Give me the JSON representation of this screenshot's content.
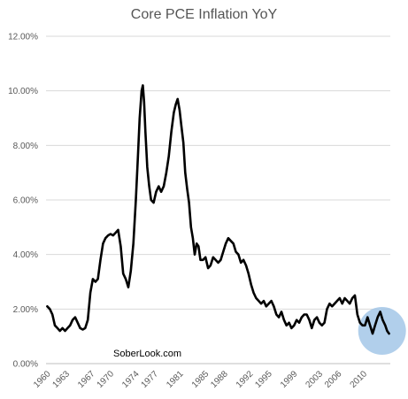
{
  "chart_data": {
    "type": "line",
    "title": "Core PCE Inflation YoY",
    "xlabel": "",
    "ylabel": "",
    "xlim": [
      1959.8,
      2014.2
    ],
    "ylim": [
      0,
      12
    ],
    "y_ticks": [
      "0.00%",
      "2.00%",
      "4.00%",
      "6.00%",
      "8.00%",
      "10.00%",
      "12.00%"
    ],
    "x_ticks": [
      "1960",
      "1963",
      "1967",
      "1970",
      "1974",
      "1977",
      "1981",
      "1985",
      "1988",
      "1992",
      "1995",
      "1999",
      "2003",
      "2006",
      "2010"
    ],
    "grid": "horizontal",
    "legend": "none",
    "annotation": "SoberLook.com",
    "highlight": {
      "x": 2012.9,
      "y": 1.2,
      "color": "#9DC3E6"
    },
    "series": [
      {
        "color": "#000000",
        "points": [
          [
            1960.0,
            2.1
          ],
          [
            1960.4,
            2.0
          ],
          [
            1960.8,
            1.8
          ],
          [
            1961.2,
            1.4
          ],
          [
            1961.6,
            1.3
          ],
          [
            1962.0,
            1.2
          ],
          [
            1962.4,
            1.3
          ],
          [
            1962.8,
            1.2
          ],
          [
            1963.2,
            1.3
          ],
          [
            1963.6,
            1.4
          ],
          [
            1964.0,
            1.6
          ],
          [
            1964.4,
            1.7
          ],
          [
            1964.8,
            1.5
          ],
          [
            1965.2,
            1.3
          ],
          [
            1965.6,
            1.25
          ],
          [
            1966.0,
            1.3
          ],
          [
            1966.4,
            1.6
          ],
          [
            1966.8,
            2.6
          ],
          [
            1967.2,
            3.1
          ],
          [
            1967.6,
            3.0
          ],
          [
            1968.0,
            3.1
          ],
          [
            1968.4,
            3.8
          ],
          [
            1968.8,
            4.4
          ],
          [
            1969.2,
            4.6
          ],
          [
            1969.6,
            4.7
          ],
          [
            1970.0,
            4.75
          ],
          [
            1970.4,
            4.7
          ],
          [
            1970.8,
            4.8
          ],
          [
            1971.2,
            4.9
          ],
          [
            1971.6,
            4.3
          ],
          [
            1972.0,
            3.3
          ],
          [
            1972.4,
            3.1
          ],
          [
            1972.8,
            2.8
          ],
          [
            1973.2,
            3.4
          ],
          [
            1973.6,
            4.4
          ],
          [
            1974.0,
            6.0
          ],
          [
            1974.3,
            7.5
          ],
          [
            1974.6,
            9.0
          ],
          [
            1974.9,
            10.0
          ],
          [
            1975.1,
            10.2
          ],
          [
            1975.3,
            9.6
          ],
          [
            1975.5,
            8.5
          ],
          [
            1975.8,
            7.2
          ],
          [
            1976.1,
            6.5
          ],
          [
            1976.4,
            6.0
          ],
          [
            1976.8,
            5.9
          ],
          [
            1977.2,
            6.3
          ],
          [
            1977.6,
            6.5
          ],
          [
            1978.0,
            6.3
          ],
          [
            1978.4,
            6.5
          ],
          [
            1978.8,
            7.0
          ],
          [
            1979.2,
            7.6
          ],
          [
            1979.6,
            8.5
          ],
          [
            1980.0,
            9.2
          ],
          [
            1980.3,
            9.5
          ],
          [
            1980.6,
            9.7
          ],
          [
            1980.9,
            9.3
          ],
          [
            1981.2,
            8.7
          ],
          [
            1981.5,
            8.1
          ],
          [
            1981.8,
            7.0
          ],
          [
            1982.1,
            6.4
          ],
          [
            1982.4,
            5.9
          ],
          [
            1982.7,
            5.0
          ],
          [
            1983.0,
            4.6
          ],
          [
            1983.3,
            4.0
          ],
          [
            1983.6,
            4.4
          ],
          [
            1983.9,
            4.3
          ],
          [
            1984.2,
            3.8
          ],
          [
            1984.6,
            3.8
          ],
          [
            1985.0,
            3.9
          ],
          [
            1985.4,
            3.5
          ],
          [
            1985.8,
            3.6
          ],
          [
            1986.2,
            3.9
          ],
          [
            1986.6,
            3.8
          ],
          [
            1987.0,
            3.7
          ],
          [
            1987.4,
            3.8
          ],
          [
            1987.8,
            4.1
          ],
          [
            1988.2,
            4.4
          ],
          [
            1988.6,
            4.6
          ],
          [
            1989.0,
            4.5
          ],
          [
            1989.4,
            4.4
          ],
          [
            1989.8,
            4.1
          ],
          [
            1990.2,
            4.0
          ],
          [
            1990.6,
            3.7
          ],
          [
            1991.0,
            3.8
          ],
          [
            1991.4,
            3.6
          ],
          [
            1991.8,
            3.3
          ],
          [
            1992.2,
            2.9
          ],
          [
            1992.6,
            2.6
          ],
          [
            1993.0,
            2.4
          ],
          [
            1993.4,
            2.3
          ],
          [
            1993.8,
            2.2
          ],
          [
            1994.2,
            2.3
          ],
          [
            1994.6,
            2.1
          ],
          [
            1995.0,
            2.2
          ],
          [
            1995.4,
            2.3
          ],
          [
            1995.8,
            2.1
          ],
          [
            1996.2,
            1.8
          ],
          [
            1996.6,
            1.7
          ],
          [
            1997.0,
            1.9
          ],
          [
            1997.4,
            1.6
          ],
          [
            1997.8,
            1.4
          ],
          [
            1998.2,
            1.5
          ],
          [
            1998.6,
            1.3
          ],
          [
            1999.0,
            1.4
          ],
          [
            1999.4,
            1.6
          ],
          [
            1999.8,
            1.5
          ],
          [
            2000.2,
            1.7
          ],
          [
            2000.6,
            1.8
          ],
          [
            2001.0,
            1.8
          ],
          [
            2001.4,
            1.6
          ],
          [
            2001.8,
            1.3
          ],
          [
            2002.2,
            1.6
          ],
          [
            2002.6,
            1.7
          ],
          [
            2003.0,
            1.5
          ],
          [
            2003.4,
            1.4
          ],
          [
            2003.8,
            1.5
          ],
          [
            2004.2,
            2.0
          ],
          [
            2004.6,
            2.2
          ],
          [
            2005.0,
            2.1
          ],
          [
            2005.4,
            2.2
          ],
          [
            2005.8,
            2.3
          ],
          [
            2006.2,
            2.4
          ],
          [
            2006.6,
            2.2
          ],
          [
            2007.0,
            2.4
          ],
          [
            2007.4,
            2.3
          ],
          [
            2007.8,
            2.2
          ],
          [
            2008.2,
            2.4
          ],
          [
            2008.6,
            2.5
          ],
          [
            2009.0,
            1.8
          ],
          [
            2009.4,
            1.5
          ],
          [
            2009.8,
            1.4
          ],
          [
            2010.2,
            1.4
          ],
          [
            2010.6,
            1.7
          ],
          [
            2011.0,
            1.4
          ],
          [
            2011.4,
            1.1
          ],
          [
            2011.8,
            1.4
          ],
          [
            2012.2,
            1.7
          ],
          [
            2012.6,
            1.9
          ],
          [
            2013.0,
            1.6
          ],
          [
            2013.4,
            1.4
          ],
          [
            2013.7,
            1.2
          ],
          [
            2014.0,
            1.1
          ]
        ]
      }
    ]
  }
}
